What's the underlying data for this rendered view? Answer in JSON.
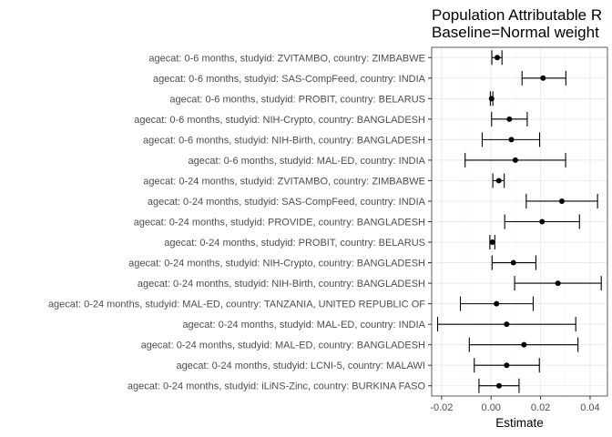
{
  "chart_data": {
    "type": "scatter",
    "subtype": "point-with-error-bars",
    "title_lines": [
      "Population Attributable R",
      "Baseline=Normal weight"
    ],
    "xlabel": "Estimate",
    "ylabel": "",
    "xlim": [
      -0.024,
      0.047
    ],
    "x_ticks": [
      -0.02,
      0.0,
      0.02,
      0.04
    ],
    "x_tick_labels": [
      "-0.02",
      "0.00",
      "0.02",
      "0.04"
    ],
    "grid": true,
    "categories": [
      "agecat: 0-6 months, studyid: ZVITAMBO, country: ZIMBABWE",
      "agecat: 0-6 months, studyid: SAS-CompFeed, country: INDIA",
      "agecat: 0-6 months, studyid: PROBIT, country: BELARUS",
      "agecat: 0-6 months, studyid: NIH-Crypto, country: BANGLADESH",
      "agecat: 0-6 months, studyid: NIH-Birth, country: BANGLADESH",
      "agecat: 0-6 months, studyid: MAL-ED, country: INDIA",
      "agecat: 0-24 months, studyid: ZVITAMBO, country: ZIMBABWE",
      "agecat: 0-24 months, studyid: SAS-CompFeed, country: INDIA",
      "agecat: 0-24 months, studyid: PROVIDE, country: BANGLADESH",
      "agecat: 0-24 months, studyid: PROBIT, country: BELARUS",
      "agecat: 0-24 months, studyid: NIH-Crypto, country: BANGLADESH",
      "agecat: 0-24 months, studyid: NIH-Birth, country: BANGLADESH",
      "agecat: 0-24 months, studyid: MAL-ED, country: TANZANIA, UNITED REPUBLIC OF",
      "agecat: 0-24 months, studyid: MAL-ED, country: INDIA",
      "agecat: 0-24 months, studyid: MAL-ED, country: BANGLADESH",
      "agecat: 0-24 months, studyid: LCNI-5, country: MALAWI",
      "agecat: 0-24 months, studyid: iLiNS-Zinc, country: BURKINA FASO"
    ],
    "estimates": [
      0.0025,
      0.021,
      0.0002,
      0.0074,
      0.0082,
      0.0098,
      0.0031,
      0.0286,
      0.0206,
      0.0005,
      0.009,
      0.027,
      0.0022,
      0.0063,
      0.0133,
      0.0063,
      0.0032
    ],
    "ci_lower": [
      0.0003,
      0.0125,
      -0.0003,
      0.0002,
      -0.0036,
      -0.0105,
      0.0007,
      0.0142,
      0.0055,
      -0.0005,
      0.0004,
      0.0095,
      -0.0124,
      -0.0216,
      -0.0088,
      -0.0068,
      -0.0049
    ],
    "ci_upper": [
      0.0044,
      0.0302,
      0.0007,
      0.0146,
      0.0196,
      0.0301,
      0.0053,
      0.043,
      0.0357,
      0.0015,
      0.0181,
      0.0445,
      0.017,
      0.0342,
      0.0351,
      0.0195,
      0.0113
    ]
  }
}
